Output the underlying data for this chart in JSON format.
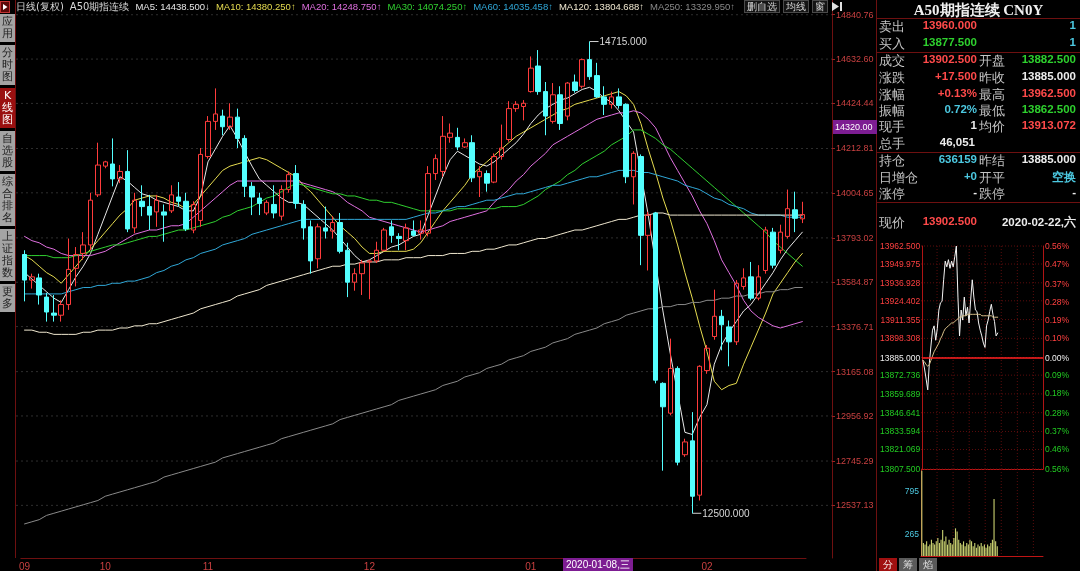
{
  "chart_data": [
    {
      "type": "candlestick",
      "title": "A50期指连续",
      "subtitle": "日线(复权)",
      "categories": [
        "09",
        null,
        null,
        null,
        null,
        null,
        null,
        null,
        null,
        null,
        null,
        "10",
        null,
        null,
        null,
        null,
        null,
        null,
        null,
        null,
        null,
        null,
        null,
        null,
        null,
        "11",
        null,
        null,
        null,
        null,
        null,
        null,
        null,
        null,
        null,
        null,
        null,
        null,
        null,
        null,
        null,
        null,
        null,
        null,
        null,
        null,
        null,
        "12",
        null,
        null,
        null,
        null,
        null,
        null,
        null,
        null,
        null,
        null,
        null,
        null,
        null,
        null,
        null,
        null,
        null,
        null,
        null,
        null,
        null,
        "01",
        null,
        null,
        null,
        null,
        null,
        null,
        null,
        null,
        null,
        null,
        null,
        null,
        null,
        null,
        null,
        null,
        null,
        null,
        null,
        null,
        null,
        null,
        null,
        "02",
        null,
        null,
        null,
        null,
        null,
        null,
        null,
        null,
        null,
        null,
        null,
        null,
        null
      ],
      "ohlc": [
        [
          13715,
          13735,
          13495,
          13595
        ],
        [
          13595,
          13625,
          13555,
          13610
        ],
        [
          13605,
          13625,
          13480,
          13525
        ],
        [
          13515,
          13535,
          13400,
          13445
        ],
        [
          13440,
          13525,
          13400,
          13430
        ],
        [
          13430,
          13500,
          13400,
          13480
        ],
        [
          13480,
          13790,
          13455,
          13645
        ],
        [
          13650,
          13750,
          13565,
          13715
        ],
        [
          13720,
          13820,
          13690,
          13760
        ],
        [
          13760,
          14005,
          13735,
          13970
        ],
        [
          13995,
          14240,
          13985,
          14135
        ],
        [
          14130,
          14155,
          14120,
          14150
        ],
        [
          14140,
          14260,
          14035,
          14070
        ],
        [
          14070,
          14135,
          14050,
          14105
        ],
        [
          14105,
          14205,
          13820,
          13835
        ],
        [
          13840,
          14005,
          13815,
          13970
        ],
        [
          13965,
          14040,
          13895,
          13940
        ],
        [
          13940,
          13995,
          13830,
          13900
        ],
        [
          13915,
          13995,
          13845,
          13970
        ],
        [
          13915,
          13950,
          13775,
          13900
        ],
        [
          13920,
          14040,
          13910,
          13995
        ],
        [
          13985,
          14055,
          13940,
          13965
        ],
        [
          13965,
          14005,
          13825,
          13835
        ],
        [
          13830,
          13965,
          13815,
          13950
        ],
        [
          13875,
          14215,
          13845,
          14185
        ],
        [
          14175,
          14365,
          14165,
          14340
        ],
        [
          14340,
          14495,
          14300,
          14375
        ],
        [
          14365,
          14395,
          14275,
          14315
        ],
        [
          14315,
          14425,
          14300,
          14360
        ],
        [
          14360,
          14400,
          14215,
          14260
        ],
        [
          14260,
          14275,
          13985,
          14035
        ],
        [
          14035,
          14055,
          13900,
          13985
        ],
        [
          13980,
          14005,
          13900,
          13955
        ],
        [
          13910,
          13970,
          13900,
          13960
        ],
        [
          13950,
          14040,
          13885,
          13910
        ],
        [
          13895,
          14040,
          13875,
          14020
        ],
        [
          14020,
          14105,
          14005,
          14090
        ],
        [
          14095,
          14135,
          13930,
          13955
        ],
        [
          13950,
          13970,
          13785,
          13840
        ],
        [
          13845,
          13875,
          13625,
          13685
        ],
        [
          13695,
          13860,
          13650,
          13845
        ],
        [
          13840,
          13940,
          13790,
          13825
        ],
        [
          13825,
          13895,
          13790,
          13865
        ],
        [
          13865,
          13910,
          13720,
          13730
        ],
        [
          13735,
          13770,
          13515,
          13585
        ],
        [
          13585,
          13650,
          13545,
          13625
        ],
        [
          13625,
          13690,
          13525,
          13675
        ],
        [
          13680,
          13690,
          13505,
          13685
        ],
        [
          13685,
          13775,
          13675,
          13735
        ],
        [
          13735,
          13840,
          13730,
          13830
        ],
        [
          13845,
          13875,
          13770,
          13805
        ],
        [
          13800,
          13815,
          13735,
          13790
        ],
        [
          13780,
          13860,
          13735,
          13840
        ],
        [
          13825,
          13875,
          13800,
          13805
        ],
        [
          13815,
          13875,
          13785,
          13830
        ],
        [
          13815,
          14130,
          13800,
          14095
        ],
        [
          14095,
          14185,
          14065,
          14165
        ],
        [
          14105,
          14365,
          14080,
          14270
        ],
        [
          14265,
          14330,
          14240,
          14285
        ],
        [
          14265,
          14310,
          14205,
          14220
        ],
        [
          14220,
          14260,
          14215,
          14240
        ],
        [
          14240,
          14275,
          14055,
          14075
        ],
        [
          14080,
          14130,
          13985,
          14105
        ],
        [
          14095,
          14110,
          14010,
          14050
        ],
        [
          14055,
          14190,
          14050,
          14175
        ],
        [
          14175,
          14325,
          14160,
          14215
        ],
        [
          14255,
          14435,
          14245,
          14400
        ],
        [
          14400,
          14435,
          14385,
          14420
        ],
        [
          14410,
          14440,
          14345,
          14425
        ],
        [
          14480,
          14645,
          14475,
          14590
        ],
        [
          14600,
          14675,
          14465,
          14480
        ],
        [
          14480,
          14525,
          14275,
          14365
        ],
        [
          14340,
          14520,
          14330,
          14465
        ],
        [
          14465,
          14505,
          14300,
          14330
        ],
        [
          14365,
          14525,
          14345,
          14520
        ],
        [
          14525,
          14560,
          14475,
          14485
        ],
        [
          14505,
          14635,
          14495,
          14630
        ],
        [
          14630,
          14715,
          14535,
          14550
        ],
        [
          14555,
          14615,
          14450,
          14455
        ],
        [
          14455,
          14505,
          14370,
          14420
        ],
        [
          14420,
          14480,
          14400,
          14455
        ],
        [
          14455,
          14495,
          14400,
          14415
        ],
        [
          14420,
          14425,
          14050,
          14080
        ],
        [
          14080,
          14200,
          13950,
          14190
        ],
        [
          14175,
          14185,
          13665,
          13805
        ],
        [
          13805,
          13915,
          13640,
          13900
        ],
        [
          13910,
          13915,
          13110,
          13125
        ],
        [
          13110,
          13115,
          12700,
          13000
        ],
        [
          12970,
          13320,
          12960,
          13180
        ],
        [
          13180,
          13190,
          12725,
          12740
        ],
        [
          12775,
          12850,
          12765,
          12835
        ],
        [
          12840,
          12975,
          12500,
          12580
        ],
        [
          12585,
          13195,
          12560,
          13190
        ],
        [
          13170,
          13290,
          13155,
          13275
        ],
        [
          13330,
          13550,
          13315,
          13425
        ],
        [
          13425,
          13455,
          13265,
          13385
        ],
        [
          13375,
          13405,
          13190,
          13305
        ],
        [
          13305,
          13595,
          13290,
          13580
        ],
        [
          13565,
          13650,
          13550,
          13605
        ],
        [
          13610,
          13680,
          13500,
          13510
        ],
        [
          13510,
          13665,
          13500,
          13610
        ],
        [
          13640,
          13845,
          13625,
          13830
        ],
        [
          13820,
          13840,
          13650,
          13665
        ],
        [
          13735,
          13855,
          13720,
          13820
        ],
        [
          13800,
          14020,
          13790,
          13930
        ],
        [
          13925,
          14010,
          13820,
          13885
        ],
        [
          13882.5,
          13962.5,
          13862.5,
          13902.5
        ]
      ],
      "series": [
        {
          "type": "line",
          "name": "MA5: 14438.500↓",
          "color": "#e8e8e8",
          "values": [
            13630,
            13600,
            13570,
            13540,
            13510,
            13490,
            13550,
            13610,
            13660,
            13720,
            13810,
            13900,
            13990,
            14080,
            14060,
            14030,
            14000,
            13990,
            13970,
            13960,
            13950,
            13940,
            13920,
            13920,
            13990,
            14150,
            14210,
            14270,
            14320,
            14260,
            null,
            14130,
            14070,
            14040,
            14010,
            13980,
            13960,
            13960,
            13950,
            13920,
            13890,
            13860,
            13830,
            13790,
            13750,
            13710,
            13680,
            13690,
            13710,
            13730,
            13750,
            13760,
            13780,
            13800,
            13810,
            13900,
            13990,
            14080,
            14160,
            14200,
            14180,
            14160,
            14140,
            14130,
            14150,
            14180,
            14210,
            14240,
            14280,
            14330,
            14370,
            14400,
            14420,
            14440,
            14450,
            14470,
            14490,
            14500,
            14480,
            14450,
            14430,
            14390,
            14340,
            14290,
            null,
            13900,
            null,
            13450,
            13250,
            null,
            12880,
            12870,
            12950,
            13010,
            13200,
            13290,
            13350,
            13400,
            13450,
            13480,
            13530,
            13580,
            13630,
            13690,
            13740,
            13780,
            13820
          ]
        },
        {
          "type": "line",
          "name": "MA10: 14380.250↑",
          "color": "#e6dc50",
          "values": [
            13710,
            13690,
            13660,
            13630,
            13610,
            13580,
            13620,
            13660,
            13700,
            13740,
            13780,
            13820,
            13860,
            13900,
            13930,
            13970,
            13980,
            13990,
            13990,
            13980,
            13960,
            13950,
            13930,
            13950,
            13990,
            14030,
            14070,
            14110,
            14130,
            14140,
            14150,
            14160,
            14170,
            14160,
            14140,
            14120,
            14100,
            14080,
            14040,
            14010,
            13970,
            13930,
            13890,
            13850,
            13820,
            13790,
            13750,
            13720,
            13720,
            13730,
            13730,
            13730,
            13730,
            13740,
            13770,
            13820,
            13870,
            13920,
            13960,
            14000,
            14040,
            14090,
            14120,
            14150,
            14180,
            14210,
            14240,
            14270,
            14290,
            14310,
            14330,
            14350,
            14370,
            14390,
            14400,
            14420,
            14430,
            14440,
            14450,
            14460,
            14470,
            14480,
            14460,
            14420,
            14330,
            14210,
            14100,
            13980,
            13880,
            13760,
            13630,
            13510,
            13380,
            13260,
            13120,
            13080,
            13100,
            13110,
            13200,
            13280,
            13360,
            13440,
            13530,
            13580,
            13630,
            13680,
            13720
          ]
        },
        {
          "type": "line",
          "name": "MA20: 14248.750↑",
          "color": "#e070e0",
          "values": [
            13800,
            13780,
            13770,
            13750,
            13740,
            13720,
            13710,
            13710,
            13710,
            13710,
            13720,
            13730,
            13750,
            13770,
            13790,
            13810,
            13820,
            13830,
            13830,
            13840,
            13850,
            13850,
            13860,
            13890,
            13920,
            13950,
            13980,
            14010,
            14040,
            14060,
            14060,
            14060,
            14060,
            14060,
            14060,
            14060,
            14060,
            14060,
            14050,
            14040,
            14030,
            14020,
            14010,
            13990,
            13960,
            13940,
            13920,
            13890,
            13880,
            13870,
            13860,
            13850,
            13840,
            13830,
            13820,
            13830,
            13840,
            13850,
            13870,
            13880,
            13890,
            13900,
            13910,
            13920,
            13960,
            13990,
            14020,
            14060,
            14090,
            14130,
            14160,
            14190,
            14230,
            14250,
            14270,
            14290,
            14310,
            14330,
            14350,
            14360,
            14370,
            14380,
            14380,
            14390,
            14380,
            14350,
            14310,
            14240,
            14170,
            14110,
            14050,
            13990,
            13920,
            13860,
            13780,
            13690,
            13630,
            13570,
            13500,
            13450,
            13420,
            13400,
            13380,
            13370,
            13380,
            13390,
            13400
          ]
        },
        {
          "type": "line",
          "name": "MA30: 14074.250↑",
          "color": "#30d030",
          "values": [
            13710,
            13710,
            13710,
            13710,
            13700,
            13700,
            13700,
            13710,
            13720,
            13730,
            13740,
            13750,
            13760,
            13760,
            13770,
            13780,
            13790,
            13800,
            13800,
            13810,
            13820,
            13830,
            13830,
            13840,
            13850,
            13860,
            13870,
            13890,
            13900,
            13920,
            13930,
            13940,
            13960,
            13980,
            13990,
            14010,
            14030,
            14050,
            14040,
            14030,
            14020,
            14010,
            14000,
            14000,
            13990,
            13990,
            13980,
            13970,
            13970,
            13960,
            13960,
            13950,
            13940,
            13930,
            13920,
            13920,
            13920,
            13920,
            13920,
            13930,
            13930,
            13930,
            13930,
            13930,
            13930,
            13940,
            13940,
            13940,
            13950,
            13970,
            13990,
            14020,
            14040,
            14060,
            14090,
            14110,
            14140,
            14160,
            14180,
            14200,
            14230,
            14250,
            14270,
            14300,
            14300,
            14280,
            14260,
            14230,
            14210,
            14180,
            14150,
            14120,
            14090,
            14060,
            14030,
            14000,
            13970,
            13940,
            13910,
            13880,
            13850,
            13820,
            13780,
            13750,
            13720,
            13690,
            13660
          ]
        },
        {
          "type": "line",
          "name": "MA60: 14035.458↑",
          "color": "#30a8d8",
          "values": [
            13530,
            13530,
            13530,
            13530,
            13530,
            13530,
            13540,
            13550,
            13560,
            13560,
            13570,
            13570,
            13580,
            13580,
            13590,
            13590,
            13600,
            13610,
            13630,
            13640,
            13660,
            13670,
            13690,
            13700,
            13720,
            13730,
            13740,
            13760,
            13770,
            13780,
            13790,
            13810,
            13820,
            13830,
            13840,
            13850,
            13860,
            13870,
            13880,
            13880,
            13880,
            13880,
            13880,
            13880,
            13880,
            13880,
            13880,
            13880,
            13880,
            13880,
            13880,
            13880,
            13880,
            13890,
            13900,
            13910,
            13910,
            13920,
            13930,
            13940,
            13940,
            13950,
            13960,
            13970,
            13970,
            13980,
            13990,
            14000,
            14000,
            14010,
            14020,
            14030,
            14040,
            14040,
            14050,
            14060,
            14070,
            14080,
            14080,
            14090,
            14100,
            14110,
            14110,
            14110,
            14100,
            14100,
            14090,
            14080,
            14070,
            14060,
            14040,
            14030,
            14020,
            14000,
            13980,
            13970,
            13950,
            13940,
            13930,
            13910,
            13900,
            13900,
            13900,
            13900,
            13890,
            13890,
            13890
          ]
        },
        {
          "type": "line",
          "name": "MA120: 13804.688↑",
          "color": "#f0e8d0",
          "values": [
            13360,
            13360,
            13350,
            13350,
            13340,
            13340,
            13340,
            13340,
            13350,
            13350,
            13360,
            13360,
            13360,
            13370,
            13370,
            13380,
            13380,
            13390,
            13390,
            13400,
            13410,
            13420,
            13430,
            13440,
            13460,
            13470,
            13480,
            13490,
            13500,
            13520,
            13530,
            13540,
            13550,
            13570,
            13580,
            13590,
            13600,
            13610,
            13620,
            13630,
            13640,
            13650,
            13660,
            13660,
            13670,
            13670,
            13680,
            13680,
            13680,
            13690,
            13690,
            13690,
            13700,
            13700,
            13700,
            13710,
            13710,
            13710,
            13720,
            13720,
            13720,
            13730,
            13730,
            13740,
            13740,
            13750,
            13760,
            13760,
            13770,
            13780,
            13790,
            13790,
            13800,
            13810,
            13820,
            13830,
            13830,
            13840,
            13850,
            13860,
            13870,
            13880,
            13880,
            13890,
            13900,
            13900,
            13910,
            13910,
            13900,
            13900,
            13900,
            13900,
            13900,
            13900,
            13900,
            13900,
            13900,
            13900,
            13900,
            13900,
            13900,
            13900,
            null,
            13900,
            13900,
            13900,
            13900
          ]
        },
        {
          "type": "line",
          "name": "MA250: 13329.950↑",
          "color": "#8a8a8a",
          "values": [
            12450,
            12460,
            12470,
            12490,
            12500,
            12510,
            12520,
            12530,
            12540,
            12550,
            12560,
            12580,
            12590,
            12600,
            12610,
            12620,
            12630,
            12640,
            12650,
            12670,
            12680,
            12690,
            12700,
            12710,
            12720,
            12730,
            12740,
            12760,
            12770,
            12780,
            12790,
            12800,
            12810,
            12820,
            12830,
            12850,
            12860,
            12870,
            12880,
            12890,
            12900,
            12910,
            12920,
            12940,
            12950,
            12960,
            12970,
            12980,
            12990,
            13000,
            13010,
            13030,
            13040,
            13050,
            13060,
            13070,
            13080,
            13100,
            13110,
            13120,
            13140,
            13150,
            13160,
            13180,
            13190,
            13200,
            13220,
            13230,
            13240,
            13260,
            13270,
            13280,
            13300,
            13310,
            13320,
            13340,
            13350,
            13360,
            13370,
            13390,
            13400,
            13410,
            13430,
            13440,
            13450,
            13460,
            13460,
            13470,
            13470,
            13480,
            13480,
            13490,
            13490,
            13500,
            13500,
            13510,
            13510,
            13520,
            13520,
            13530,
            13530,
            13540,
            13540,
            13550,
            13550,
            13560,
            13560
          ]
        }
      ],
      "ylim": [
        12290,
        14910
      ],
      "yticks": [
        14840.76,
        {
          "value": 14632.6,
          "label": "14632.60"
        },
        14424.44,
        14212.81,
        14004.65,
        13793.02,
        13584.87,
        13376.71,
        13165.08,
        12956.92,
        12745.29,
        12537.13
      ],
      "grid": "y",
      "legend": "top left",
      "marker": "none",
      "annotations": [
        "14715.000",
        "12500.000",
        "14320.00",
        "2020-01-08,三",
        "应用",
        "分时图",
        "K线图",
        "自选股",
        "综合排名",
        "上证指数",
        "更多",
        "删自选",
        "均线",
        "窗"
      ]
    },
    {
      "type": "other",
      "title": "A50期指连续 CN0Y",
      "annotations": [
        "卖出",
        "13960.000",
        "1",
        "买入",
        "13877.500",
        "1",
        "成交",
        "13902.500",
        "开盘",
        "13882.500",
        "涨跌",
        "+17.500",
        "昨收",
        "13885.000",
        "涨幅",
        "+0.13%",
        "最高",
        "13962.500",
        "振幅",
        "0.72%",
        "最低",
        "13862.500",
        "现手",
        "1",
        "均价",
        "13913.072",
        "总手",
        "46,051",
        "持仓",
        "636159",
        "昨结",
        "13885.000",
        "日增仓",
        "+0",
        "开平",
        "空换",
        "涨停",
        "-",
        "跌停",
        "-",
        "现价",
        "13902.500",
        "2020-02-22,六"
      ]
    },
    {
      "type": "line",
      "categories": [
        null,
        null,
        null,
        null,
        null,
        null,
        null,
        null,
        null,
        null,
        null,
        null,
        null,
        null,
        null,
        null,
        null,
        null,
        null,
        null,
        null,
        null,
        null,
        null,
        null,
        null,
        null,
        null,
        null,
        null,
        null,
        null,
        null,
        null,
        null,
        null,
        null,
        null,
        null,
        null,
        null,
        null,
        null,
        null,
        null,
        null,
        null,
        null,
        null,
        null,
        null,
        null,
        null,
        null,
        null,
        null,
        null,
        null,
        null,
        null,
        null,
        null,
        null,
        null,
        null,
        null,
        null,
        null,
        null,
        null,
        null,
        null,
        null,
        null,
        null,
        null
      ],
      "series": [
        {
          "color": "#f4f4f4",
          "values": [
            13883,
            13877,
            13870,
            13862.5,
            13881,
            13893,
            13904,
            13907,
            13897,
            13905,
            13918,
            13923,
            13924,
            13939,
            13952,
            13948,
            13953,
            13947,
            13952,
            13948,
            13955,
            13962.5,
            13927,
            13900,
            13918,
            13911,
            13927,
            13914,
            13920,
            13909,
            13925,
            13939,
            13927,
            13918,
            13917,
            13909,
            13904,
            13900,
            13895,
            13892,
            13907,
            13911,
            13917,
            13922,
            13915,
            13910,
            13900,
            13902,
            null,
            null,
            null,
            null,
            null,
            null,
            null,
            null,
            null,
            null,
            null,
            null,
            null,
            null,
            null,
            null,
            null,
            null,
            null,
            null,
            null,
            null,
            null,
            null,
            null,
            null,
            null,
            null
          ]
        },
        {
          "color": "#d8c08a",
          "values": [
            13883,
            13882,
            13880,
            13879,
            13880,
            13883,
            13886,
            13889,
            13891,
            13893,
            13895,
            13898,
            13900,
            13903,
            13905,
            13906,
            13907,
            13908,
            13909,
            13909,
            13910,
            13911,
            13912,
            13913,
            13913,
            13914,
            13914,
            13914,
            13915,
            13915,
            13915,
            13915,
            13915,
            13915,
            13915,
            13915,
            13915,
            13914,
            13914,
            13914,
            13914,
            13914,
            13914,
            13914,
            13913,
            13913,
            13913,
            13913,
            null,
            null,
            null,
            null,
            null,
            null,
            null,
            null,
            null,
            null,
            null,
            null,
            null,
            null,
            null,
            null,
            null,
            null,
            null,
            null,
            null,
            null,
            null,
            null,
            null,
            null,
            null,
            null
          ]
        }
      ],
      "ylim": [
        13807.5,
        13962.5
      ],
      "yticks": [
        {
          "value": 13962.5,
          "label": "13962.500"
        },
        13949.975,
        13936.928,
        13924.402,
        13911.355,
        13898.308,
        {
          "value": 13885,
          "label": "13885.000"
        },
        13872.736,
        13859.689,
        13846.641,
        13833.594,
        13821.069,
        {
          "value": 13807.5,
          "label": "13807.500"
        }
      ],
      "y2lim": [
        -0.56,
        0.56
      ],
      "y2ticks": [
        {
          "value": 0.56,
          "label": "0.56%"
        },
        {
          "value": 0.47,
          "label": "0.47%"
        },
        {
          "value": 0.37,
          "label": "0.37%"
        },
        {
          "value": 0.28,
          "label": "0.28%"
        },
        {
          "value": 0.19,
          "label": "0.19%"
        },
        {
          "value": 0.1,
          "label": "0.10%"
        },
        {
          "value": 0,
          "label": "0.00%"
        },
        {
          "value": -0.09,
          "label": "0.09%"
        },
        {
          "value": -0.18,
          "label": "0.18%"
        },
        {
          "value": -0.28,
          "label": "0.28%"
        },
        {
          "value": -0.37,
          "label": "0.37%"
        },
        {
          "value": -0.46,
          "label": "0.46%"
        },
        {
          "value": -0.56,
          "label": "0.56%"
        }
      ],
      "ref_lines": [
        {
          "axis": "y",
          "value": 13885,
          "color": "#ff2020"
        }
      ],
      "grid": true,
      "marker": "none"
    },
    {
      "type": "bar",
      "categories": [
        null,
        null,
        null,
        null,
        null,
        null,
        null,
        null,
        null,
        null,
        null,
        null,
        null,
        null,
        null,
        null,
        null,
        null,
        null,
        null,
        null,
        null,
        null,
        null,
        null,
        null,
        null,
        null,
        null,
        null,
        null,
        null,
        null,
        null,
        null,
        null,
        null,
        null,
        null,
        null,
        null,
        null,
        null,
        null,
        null,
        null,
        null,
        null,
        null,
        null,
        null,
        null,
        null,
        null,
        null,
        null,
        null,
        null,
        null,
        null,
        null,
        null,
        null,
        null,
        null,
        null,
        null,
        null,
        null,
        null,
        null,
        null,
        null,
        null,
        null,
        null
      ],
      "values": [
        1050,
        160,
        140,
        180,
        120,
        140,
        200,
        160,
        140,
        180,
        220,
        160,
        200,
        320,
        180,
        240,
        140,
        200,
        160,
        140,
        220,
        340,
        300,
        200,
        160,
        140,
        180,
        120,
        160,
        140,
        200,
        180,
        120,
        160,
        100,
        140,
        120,
        160,
        120,
        140,
        100,
        140,
        120,
        160,
        200,
        700,
        180,
        120,
        null,
        null,
        null,
        null,
        null,
        null,
        null,
        null,
        null,
        null,
        null,
        null,
        null,
        null,
        null,
        null,
        null,
        null,
        null,
        null,
        null,
        null,
        null,
        null,
        null,
        null,
        null,
        null
      ],
      "color": "#c8d070",
      "ylim": [
        0,
        1070
      ],
      "yticks": [
        265,
        795
      ],
      "grid": "x",
      "annotations": [
        "分",
        "筹",
        "焰"
      ]
    }
  ]
}
